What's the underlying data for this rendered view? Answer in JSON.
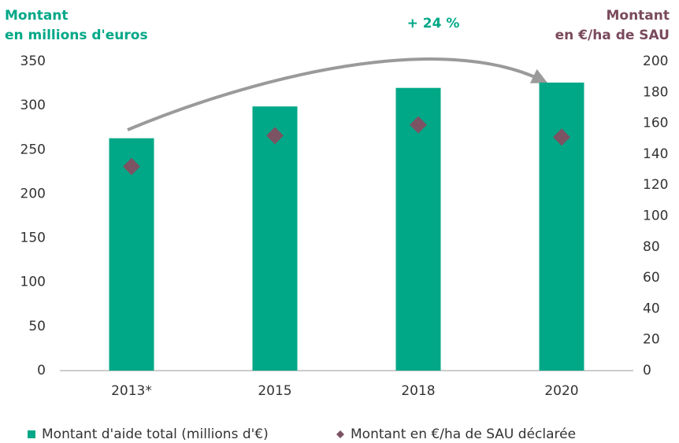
{
  "chart_data": {
    "type": "bar",
    "y_label": [
      "Montant",
      "en millions d'euros"
    ],
    "y2_label": [
      "Montant",
      "en €/ha de SAU"
    ],
    "annotation": "+ 24 %",
    "categories": [
      "2013*",
      "2015",
      "2018",
      "2020"
    ],
    "series": [
      {
        "name": "Montant d'aide total (millions d'€)",
        "color": "#00a887",
        "type": "bar",
        "values": [
          263,
          299,
          320,
          326
        ]
      },
      {
        "name": "Montant en €/ha de SAU déclarée",
        "color": "#7b5363",
        "type": "diamond",
        "axis": "y2",
        "values": [
          132,
          152,
          159,
          151
        ]
      }
    ],
    "ylim": [
      0,
      350
    ],
    "yticks": [
      0,
      50,
      100,
      150,
      200,
      250,
      300,
      350
    ],
    "y2lim": [
      0,
      200
    ],
    "y2ticks": [
      0,
      20,
      40,
      60,
      80,
      100,
      120,
      140,
      160,
      180,
      200
    ],
    "y_label_color": "#00a887",
    "y2_label_color": "#7a4a5c",
    "grid": false
  }
}
